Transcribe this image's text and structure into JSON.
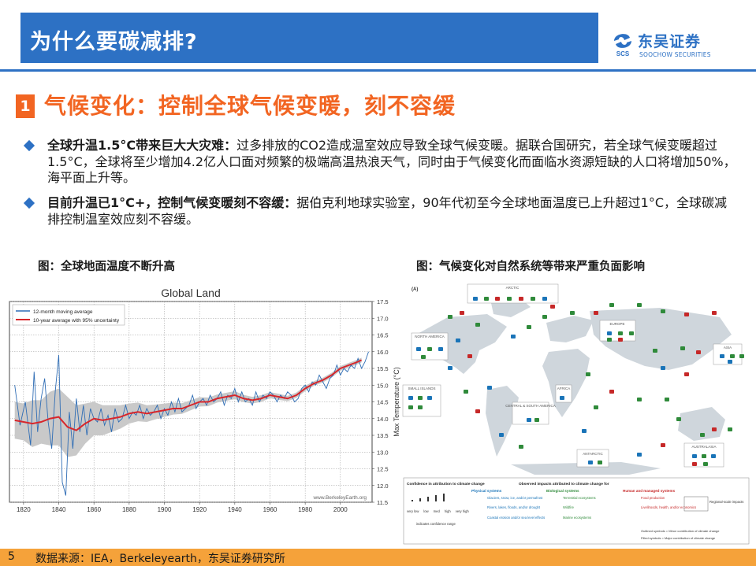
{
  "header": {
    "title": "为什么要碳减排?"
  },
  "logo": {
    "name_cn": "东吴证券",
    "name_en": "SOOCHOW SECURITIES",
    "mark": "SCS"
  },
  "section": {
    "number": "1",
    "title": "气候变化：控制全球气候变暖，刻不容缓"
  },
  "bullets": [
    {
      "bold": "全球升温1.5°C带来巨大大灾难：",
      "text": "过多排放的CO2造成温室效应导致全球气候变暖。据联合国研究，若全球气候变暖超过1.5°C，全球将至少增加4.2亿人口面对频繁的极端高温热浪天气，同时由于气候变化而面临水资源短缺的人口将增加50%，海平面上升等。"
    },
    {
      "bold": "目前升温已1°C+，控制气候变暖刻不容缓：",
      "text": "据伯克利地球实验室，90年代初至今全球地面温度已上升超过1°C，全球碳减排控制温室效应刻不容缓。"
    }
  ],
  "figures": {
    "left_label": "图：全球地面温度不断升高",
    "right_label": "图：气候变化对自然系统等带来严重负面影响"
  },
  "chart_data": {
    "type": "line",
    "title": "Global Land",
    "ylabel": "Max Temperature (°C)",
    "xlabel": "",
    "xlim": [
      1812,
      2018
    ],
    "ylim": [
      11.5,
      17.5
    ],
    "xticks": [
      1820,
      1840,
      1860,
      1880,
      1900,
      1920,
      1940,
      1960,
      1980,
      2000
    ],
    "yticks": [
      11.5,
      12.0,
      12.5,
      13.0,
      13.5,
      14.0,
      14.5,
      15.0,
      15.5,
      16.0,
      16.5,
      17.0,
      17.5
    ],
    "watermark": "www.BerkeleyEarth.org",
    "legend_position": "top-left",
    "series": [
      {
        "name": "12-month moving average",
        "color": "#2f6db5",
        "x": [
          1815,
          1818,
          1821,
          1824,
          1826,
          1828,
          1830,
          1832,
          1834,
          1836,
          1838,
          1840,
          1842,
          1844,
          1846,
          1848,
          1850,
          1852,
          1854,
          1856,
          1858,
          1860,
          1862,
          1864,
          1866,
          1868,
          1870,
          1872,
          1874,
          1876,
          1878,
          1880,
          1882,
          1884,
          1886,
          1888,
          1890,
          1892,
          1894,
          1896,
          1898,
          1900,
          1902,
          1904,
          1906,
          1908,
          1910,
          1912,
          1914,
          1916,
          1918,
          1920,
          1922,
          1924,
          1926,
          1928,
          1930,
          1932,
          1934,
          1936,
          1938,
          1940,
          1942,
          1944,
          1946,
          1948,
          1950,
          1952,
          1954,
          1956,
          1958,
          1960,
          1962,
          1964,
          1966,
          1968,
          1970,
          1972,
          1974,
          1976,
          1978,
          1980,
          1982,
          1984,
          1986,
          1988,
          1990,
          1992,
          1994,
          1996,
          1998,
          2000,
          2002,
          2004,
          2006,
          2008,
          2010,
          2012,
          2014,
          2016
        ],
        "y": [
          15.0,
          13.8,
          14.5,
          13.2,
          15.4,
          13.6,
          14.6,
          15.2,
          13.9,
          13.1,
          14.8,
          15.9,
          12.1,
          11.7,
          14.2,
          13.1,
          14.6,
          13.6,
          14.4,
          13.5,
          14.3,
          14.0,
          13.9,
          14.3,
          13.8,
          14.1,
          13.6,
          14.3,
          13.9,
          14.0,
          14.4,
          14.0,
          14.2,
          14.1,
          14.4,
          14.0,
          14.3,
          14.1,
          14.2,
          14.4,
          14.0,
          14.3,
          14.1,
          14.5,
          14.2,
          14.6,
          14.2,
          14.3,
          14.4,
          14.7,
          14.3,
          14.5,
          14.6,
          14.4,
          14.7,
          14.5,
          14.6,
          14.8,
          14.4,
          14.7,
          14.6,
          14.9,
          14.5,
          14.8,
          14.5,
          14.6,
          14.4,
          14.8,
          14.5,
          14.7,
          14.6,
          14.8,
          14.7,
          14.5,
          14.7,
          14.6,
          14.8,
          14.7,
          14.5,
          14.6,
          14.9,
          15.0,
          14.8,
          15.1,
          15.0,
          15.3,
          15.1,
          14.9,
          15.2,
          15.3,
          15.6,
          15.3,
          15.5,
          15.4,
          15.6,
          15.5,
          15.8,
          15.5,
          15.7,
          16.0
        ]
      },
      {
        "name": "10-year average with 95% uncertainty",
        "color": "#d7262b",
        "x": [
          1815,
          1820,
          1825,
          1830,
          1835,
          1840,
          1845,
          1850,
          1855,
          1860,
          1865,
          1870,
          1875,
          1880,
          1885,
          1890,
          1895,
          1900,
          1905,
          1910,
          1915,
          1920,
          1925,
          1930,
          1935,
          1940,
          1945,
          1950,
          1955,
          1960,
          1965,
          1970,
          1975,
          1980,
          1985,
          1990,
          1995,
          2000,
          2005,
          2010,
          2012
        ],
        "y": [
          13.95,
          13.9,
          13.85,
          13.9,
          14.0,
          14.05,
          13.75,
          13.65,
          13.85,
          14.0,
          13.95,
          14.0,
          14.05,
          14.15,
          14.2,
          14.15,
          14.2,
          14.25,
          14.3,
          14.3,
          14.4,
          14.5,
          14.5,
          14.6,
          14.65,
          14.7,
          14.6,
          14.55,
          14.6,
          14.7,
          14.65,
          14.6,
          14.7,
          14.9,
          15.05,
          15.15,
          15.3,
          15.5,
          15.6,
          15.7,
          15.75
        ],
        "uncertainty": [
          0.55,
          0.55,
          0.7,
          0.65,
          0.8,
          0.85,
          0.9,
          0.75,
          0.6,
          0.5,
          0.45,
          0.4,
          0.35,
          0.3,
          0.28,
          0.25,
          0.22,
          0.2,
          0.18,
          0.16,
          0.15,
          0.14,
          0.13,
          0.12,
          0.12,
          0.12,
          0.11,
          0.1,
          0.1,
          0.09,
          0.09,
          0.08,
          0.08,
          0.08,
          0.07,
          0.07,
          0.07,
          0.07,
          0.07,
          0.07,
          0.07
        ]
      }
    ]
  },
  "impact_map": {
    "panel_tag": "(A)",
    "regions": [
      "ARCTIC",
      "NORTH AMERICA",
      "EUROPE",
      "ASIA",
      "SMALL ISLANDS",
      "AFRICA",
      "CENTRAL & SOUTH AMERICA",
      "AUSTRALASIA",
      "ANTARCTIC"
    ],
    "legend": {
      "confidence_title": "Confidence in attribution to climate change",
      "confidence_levels": [
        "very low",
        "low",
        "med",
        "high",
        "very high"
      ],
      "confidence_note": "indicates confidence range",
      "observed_title": "Observed impacts attributed to climate change for",
      "physical_title": "Physical systems",
      "physical_items": [
        "Glaciers, snow, ice, and/or permafrost",
        "Rivers, lakes, floods, and/or drought",
        "Coastal erosion and/or sea level effects"
      ],
      "biological_title": "Biological systems",
      "biological_items": [
        "Terrestrial ecosystems",
        "Wildfire",
        "Marine ecosystems"
      ],
      "human_title": "Human and managed systems",
      "human_items": [
        "Food production",
        "Livelihoods, health, and/or economics"
      ],
      "regional": "Regional-scale impacts",
      "outlined_note": "Outlined symbols = Minor contribution of climate change",
      "filled_note": "Filled symbols = Major contribution of climate change"
    }
  },
  "footer": {
    "page": "5",
    "source": "数据来源：IEA，Berkeleyearth，东吴证券研究所"
  }
}
